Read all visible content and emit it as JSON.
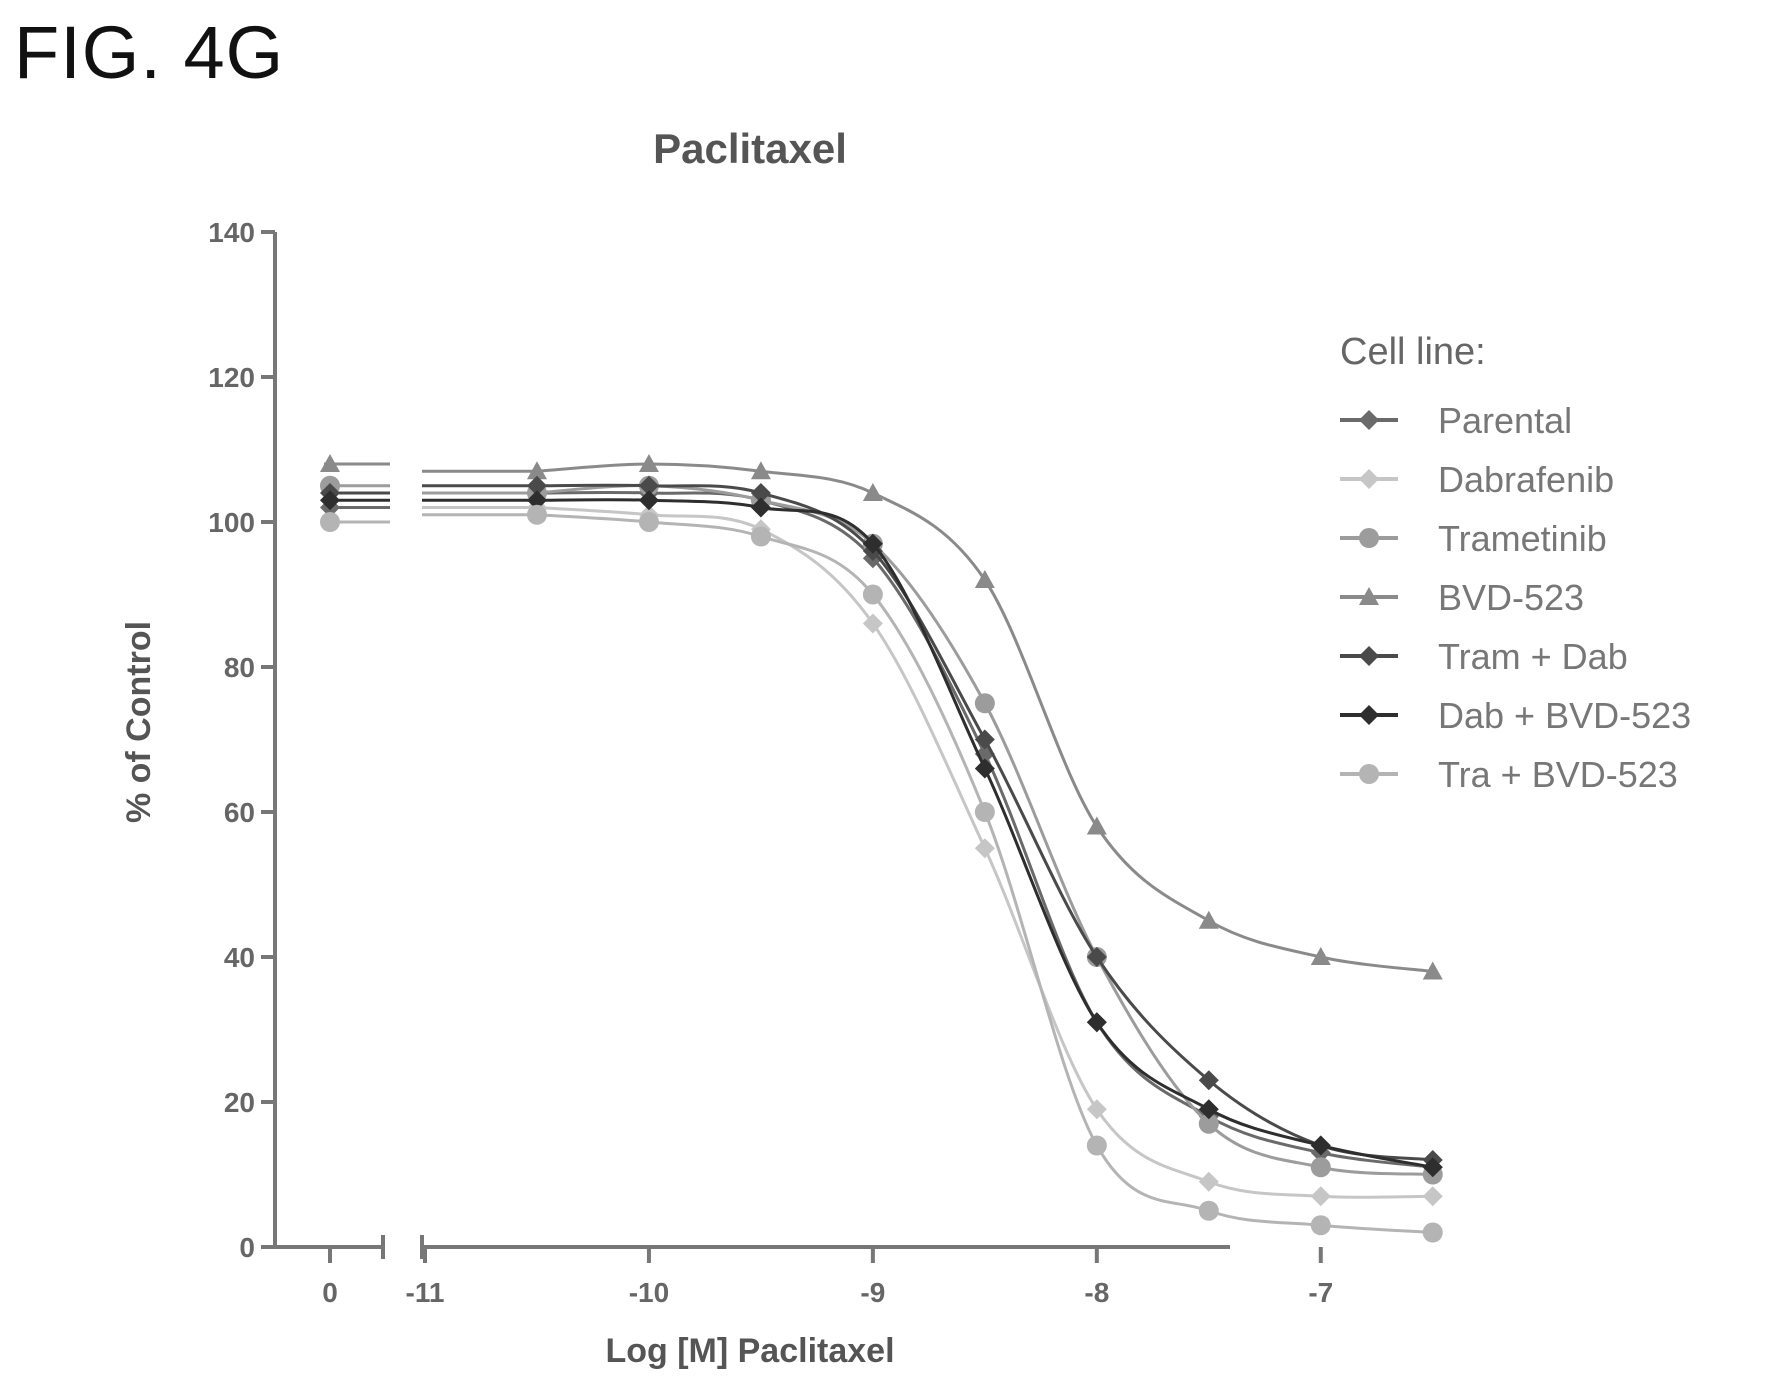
{
  "figure_label": "FIG. 4G",
  "chart_data": {
    "type": "line",
    "title": "Paclitaxel",
    "xlabel": "Log [M] Paclitaxel",
    "ylabel": "% of Control",
    "ylim": [
      0,
      140
    ],
    "yticks": [
      0,
      20,
      40,
      60,
      80,
      100,
      120,
      140
    ],
    "xlim": [
      -11,
      -7.45
    ],
    "xticks": [
      -11,
      -10,
      -9,
      -8,
      -7
    ],
    "x_break": {
      "control_tick_label": "0",
      "control_x": 0
    },
    "grid": false,
    "legend": {
      "title": "Cell line:",
      "placement": "right"
    },
    "x": [
      -10.5,
      -10,
      -9.5,
      -9,
      -8.5,
      -8,
      -7.5,
      -7,
      -6.5
    ],
    "series": [
      {
        "name": "Parental",
        "color": "#6a6a6a",
        "marker": "diamond",
        "control": 102,
        "values": [
          104,
          104,
          103,
          95,
          68,
          31,
          18,
          13,
          11
        ]
      },
      {
        "name": "Dabrafenib",
        "color": "#c6c6c6",
        "marker": "diamond",
        "control": 100,
        "values": [
          102,
          101,
          99,
          86,
          55,
          19,
          9,
          7,
          7
        ]
      },
      {
        "name": "Trametinib",
        "color": "#9c9c9c",
        "marker": "circle",
        "control": 105,
        "values": [
          104,
          105,
          103,
          97,
          75,
          40,
          17,
          11,
          10
        ]
      },
      {
        "name": "BVD-523",
        "color": "#8a8a8a",
        "marker": "triangle",
        "control": 108,
        "values": [
          107,
          108,
          107,
          104,
          92,
          58,
          45,
          40,
          38
        ]
      },
      {
        "name": "Tram + Dab",
        "color": "#4a4a4a",
        "marker": "diamond",
        "control": 104,
        "values": [
          105,
          105,
          104,
          96,
          70,
          40,
          23,
          14,
          12
        ]
      },
      {
        "name": "Dab + BVD-523",
        "color": "#2e2e2e",
        "marker": "diamond",
        "control": 103,
        "values": [
          103,
          103,
          102,
          97,
          66,
          31,
          19,
          14,
          11
        ]
      },
      {
        "name": "Tra + BVD-523",
        "color": "#b4b4b4",
        "marker": "circle",
        "control": 100,
        "values": [
          101,
          100,
          98,
          90,
          60,
          14,
          5,
          3,
          2
        ]
      }
    ]
  }
}
